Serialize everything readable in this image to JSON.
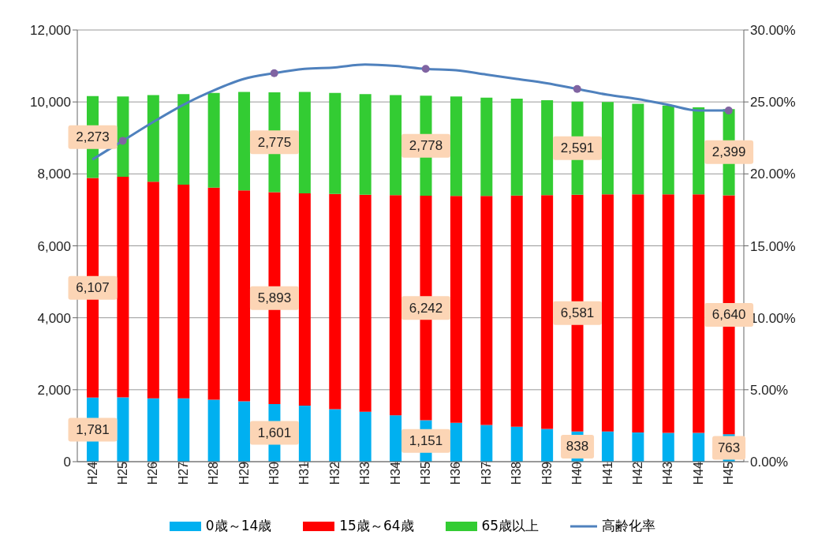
{
  "chart_data": {
    "type": "bar",
    "stacked": true,
    "categories": [
      "H24",
      "H25",
      "H26",
      "H27",
      "H28",
      "H29",
      "H30",
      "H31",
      "H32",
      "H33",
      "H34",
      "H35",
      "H36",
      "H37",
      "H38",
      "H39",
      "H40",
      "H41",
      "H42",
      "H43",
      "H44",
      "H45"
    ],
    "series": [
      {
        "name": "0歳～14歳",
        "color": "#00b0f0",
        "values": [
          1781,
          1790,
          1760,
          1760,
          1720,
          1680,
          1601,
          1560,
          1460,
          1390,
          1290,
          1151,
          1080,
          1020,
          970,
          910,
          838,
          840,
          810,
          800,
          800,
          763
        ],
        "value_labels": [
          "1,781",
          null,
          null,
          null,
          null,
          null,
          "1,601",
          null,
          null,
          null,
          null,
          "1,151",
          null,
          null,
          null,
          null,
          "838",
          null,
          null,
          null,
          null,
          "763"
        ]
      },
      {
        "name": "15歳～64歳",
        "color": "#ff0000",
        "values": [
          6107,
          6130,
          6020,
          5940,
          5900,
          5860,
          5893,
          5900,
          5980,
          6030,
          6120,
          6242,
          6310,
          6370,
          6430,
          6500,
          6581,
          6590,
          6620,
          6630,
          6630,
          6640
        ],
        "value_labels": [
          "6,107",
          null,
          null,
          null,
          null,
          null,
          "5,893",
          null,
          null,
          null,
          null,
          "6,242",
          null,
          null,
          null,
          null,
          "6,581",
          null,
          null,
          null,
          null,
          "6,640"
        ]
      },
      {
        "name": "65歳以上",
        "color": "#33cc33",
        "values": [
          2273,
          2230,
          2410,
          2520,
          2630,
          2740,
          2775,
          2820,
          2810,
          2800,
          2780,
          2778,
          2760,
          2730,
          2690,
          2640,
          2591,
          2570,
          2520,
          2470,
          2420,
          2399
        ],
        "value_labels": [
          "2,273",
          null,
          null,
          null,
          null,
          null,
          "2,775",
          null,
          null,
          null,
          null,
          "2,778",
          null,
          null,
          null,
          null,
          "2,591",
          null,
          null,
          null,
          null,
          "2,399"
        ]
      },
      {
        "name": "高齢化率",
        "type": "line",
        "axis": "y2",
        "color": "#4f81bd",
        "marker": "none",
        "values": [
          21.0,
          22.3,
          23.6,
          24.8,
          25.8,
          26.6,
          27.0,
          27.3,
          27.4,
          27.6,
          27.5,
          27.3,
          27.2,
          26.9,
          26.6,
          26.3,
          25.9,
          25.5,
          25.2,
          24.8,
          24.4,
          24.4
        ]
      },
      {
        "type": "scatter",
        "axis": "y2",
        "color": "#8064a2",
        "x": [
          "H25",
          "H30",
          "H35",
          "H40",
          "H45"
        ],
        "values": [
          22.3,
          27.0,
          27.3,
          25.9,
          24.4
        ]
      }
    ],
    "ylim": [
      0,
      12000
    ],
    "yticks": [
      {
        "value": 0,
        "label": "0"
      },
      {
        "value": 2000,
        "label": "2,000"
      },
      {
        "value": 4000,
        "label": "4,000"
      },
      {
        "value": 6000,
        "label": "6,000"
      },
      {
        "value": 8000,
        "label": "8,000"
      },
      {
        "value": 10000,
        "label": "10,000"
      },
      {
        "value": 12000,
        "label": "12,000"
      }
    ],
    "y2lim": [
      0,
      30
    ],
    "y2ticks": [
      {
        "value": 0,
        "label": "0.00%"
      },
      {
        "value": 5,
        "label": "5.00%"
      },
      {
        "value": 10,
        "label": "10.00%"
      },
      {
        "value": 15,
        "label": "15.00%"
      },
      {
        "value": 20,
        "label": "20.00%"
      },
      {
        "value": 25,
        "label": "25.00%"
      },
      {
        "value": 30,
        "label": "30.00%"
      }
    ],
    "grid": "y",
    "legend": "bottom"
  }
}
